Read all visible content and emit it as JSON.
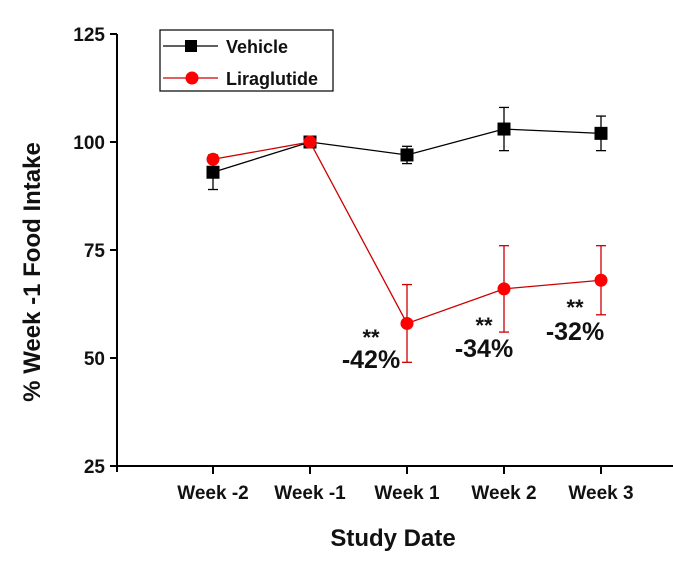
{
  "chart_data": {
    "type": "line",
    "title": "",
    "xlabel": "Study Date",
    "ylabel": "% Week -1 Food Intake",
    "ylim": [
      25,
      125
    ],
    "yticks": [
      25,
      50,
      75,
      100,
      125
    ],
    "categories": [
      "Week -2",
      "Week -1",
      "Week 1",
      "Week 2",
      "Week 3"
    ],
    "grid": false,
    "legend_position": "top-left",
    "series": [
      {
        "name": "Vehicle",
        "color": "#000000",
        "marker": "square",
        "values": [
          93,
          100,
          97,
          103,
          102
        ],
        "errors": [
          4,
          0,
          2,
          5,
          4
        ]
      },
      {
        "name": "Liraglutide",
        "color": "#ff0000",
        "line_color": "#cc0000",
        "marker": "circle",
        "values": [
          96,
          100,
          58,
          66,
          68
        ],
        "errors": [
          0,
          0,
          9,
          10,
          8
        ]
      }
    ],
    "annotations": [
      {
        "category": "Week 1",
        "stars": "**",
        "text": "-42%"
      },
      {
        "category": "Week 2",
        "stars": "**",
        "text": "-34%"
      },
      {
        "category": "Week 3",
        "stars": "**",
        "text": "-32%"
      }
    ]
  }
}
